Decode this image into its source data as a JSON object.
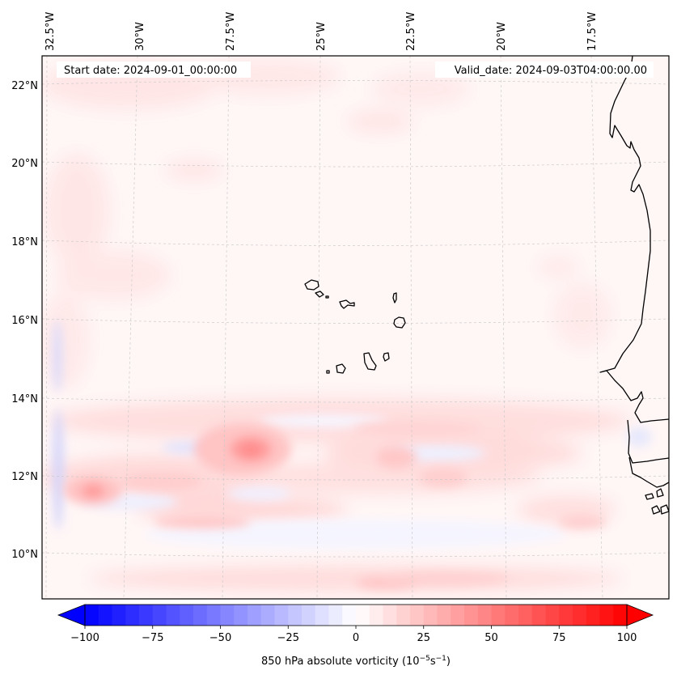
{
  "figure": {
    "type": "map",
    "domain": "map",
    "start_date_label": "Start date: 2024-09-01_00:00:00",
    "valid_date_label": "Valid_date: 2024-09-03T04:00:00.00"
  },
  "map": {
    "longitude_ticks": [
      "32.5°W",
      "30°W",
      "27.5°W",
      "25°W",
      "22.5°W",
      "20°W",
      "17.5°W"
    ],
    "latitude_ticks": [
      "22°N",
      "20°N",
      "18°N",
      "16°N",
      "14°N",
      "12°N",
      "10°N"
    ],
    "lon_range": [
      -32.5,
      -15.5
    ],
    "lat_range": [
      9,
      22.8
    ],
    "field": "850 hPa absolute vorticity",
    "features": [
      {
        "name": "vorticity-max-central",
        "lon": -26.6,
        "lat": 12.6,
        "value": 40
      },
      {
        "name": "vorticity-max-west",
        "lon": -31.3,
        "lat": 11.5,
        "value": 35
      },
      {
        "name": "vorticity-max-east",
        "lon": -22.7,
        "lat": 12.3,
        "value": 25
      },
      {
        "name": "vorticity-band-south",
        "lon": -23.5,
        "lat": 9.4,
        "value": 20
      },
      {
        "name": "negative-vorticity-strip-west",
        "lon": -32.1,
        "lat": 12.5,
        "value": -15
      }
    ]
  },
  "colorbar": {
    "label_text": "850 hPa absolute vorticity (10",
    "label_exp1": "−5",
    "label_mid": "s",
    "label_exp2": "−1",
    "label_end": ")",
    "ticks": [
      "−100",
      "−75",
      "−50",
      "−25",
      "0",
      "25",
      "50",
      "75",
      "100"
    ],
    "tick_values": [
      -100,
      -75,
      -50,
      -25,
      0,
      25,
      50,
      75,
      100
    ],
    "range": [
      -100,
      100
    ],
    "step": 5,
    "extend": "both",
    "cmap": "bwr",
    "low_color": "#0000ff",
    "mid_color": "#ffffff",
    "high_color": "#ff0000"
  },
  "chart_data": {
    "type": "heatmap",
    "title": "",
    "xlabel": "",
    "ylabel": "",
    "colorbar_label": "850 hPa absolute vorticity (10^-5 s^-1)",
    "x_ticks": [
      "32.5°W",
      "30°W",
      "27.5°W",
      "25°W",
      "22.5°W",
      "20°W",
      "17.5°W"
    ],
    "y_ticks": [
      "22°N",
      "20°N",
      "18°N",
      "16°N",
      "14°N",
      "12°N",
      "10°N"
    ],
    "value_range": [
      -100,
      100
    ],
    "annotations": [
      "Start date: 2024-09-01_00:00:00",
      "Valid_date: 2024-09-03T04:00:00.00"
    ]
  }
}
